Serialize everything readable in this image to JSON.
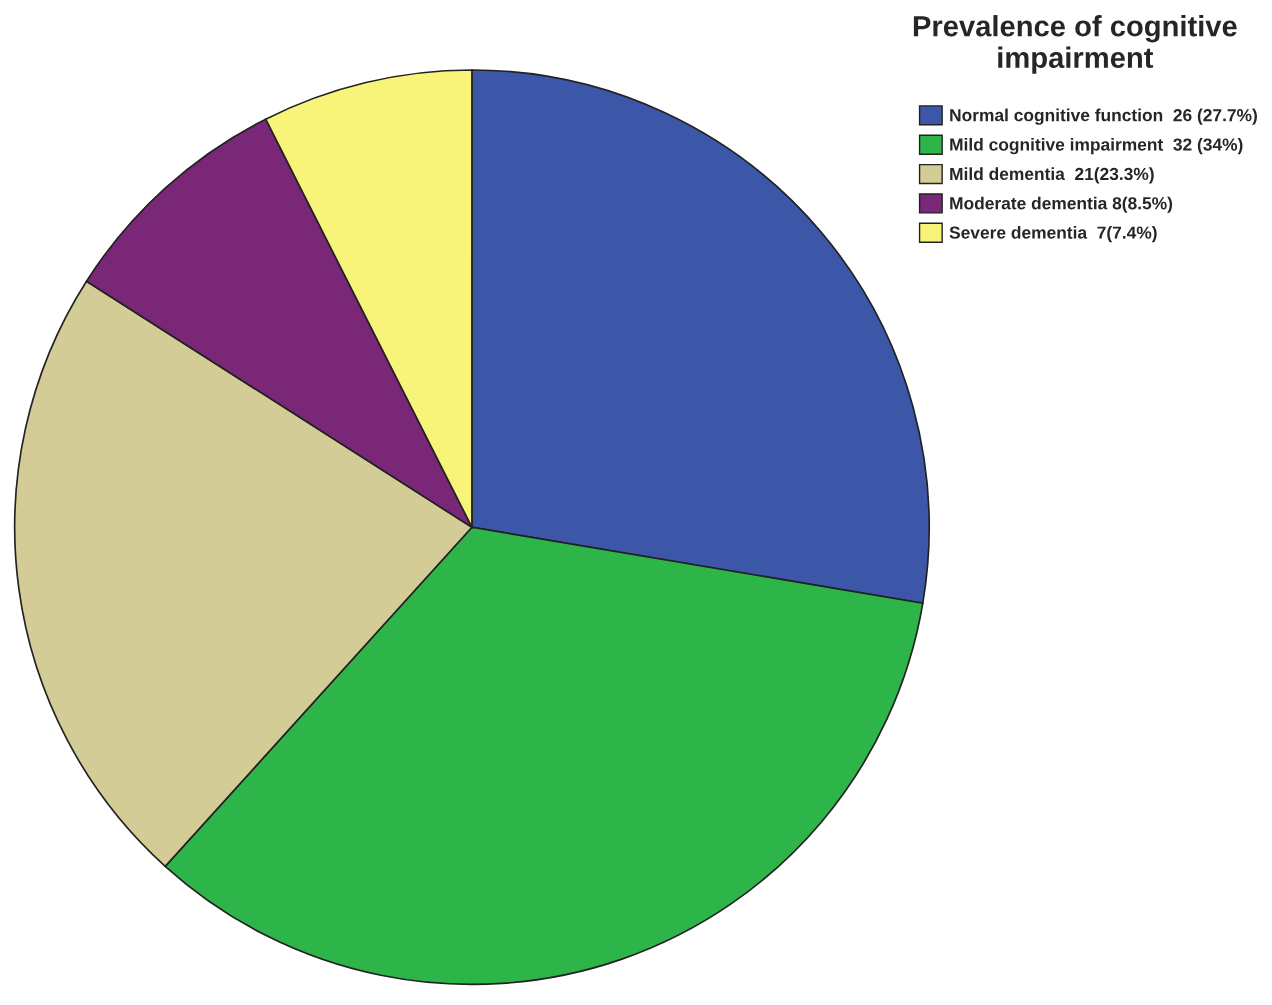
{
  "chart_data": {
    "type": "pie",
    "legend_title": "Prevalence of cognitive impairment",
    "categories": [
      "Normal cognitive function  26 (27.7%)",
      "Mild cognitive impairment  32 (34%)",
      "Mild dementia  21(23.3%)",
      "Moderate dementia 8(8.5%)",
      "Severe dementia  7(7.4%)"
    ],
    "values": [
      26,
      32,
      21,
      8,
      7
    ],
    "colors": [
      "#3c56a8",
      "#2db54a",
      "#d4cc96",
      "#7a2778",
      "#f8f47a"
    ],
    "legend": "top right"
  }
}
